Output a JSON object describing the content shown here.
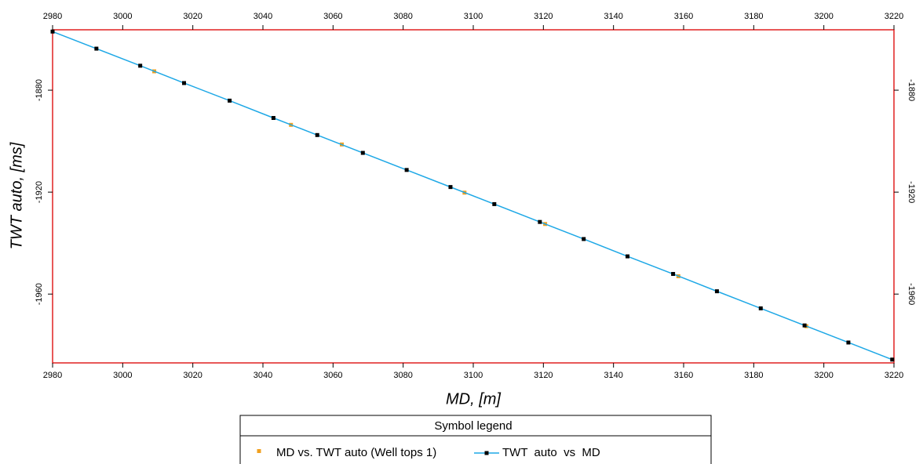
{
  "chart_data": {
    "type": "scatter",
    "xlabel": "MD, [m]",
    "ylabel": "TWT auto, [ms]",
    "legend_title": "Symbol legend",
    "xlim": [
      2980,
      3220
    ],
    "xticks": [
      2980,
      3000,
      3020,
      3040,
      3060,
      3080,
      3100,
      3120,
      3140,
      3160,
      3180,
      3200,
      3220
    ],
    "ylim": [
      -1987,
      -1856.3
    ],
    "yticks": [
      -1880,
      -1920,
      -1960
    ],
    "series": [
      {
        "name": "MD vs. TWT auto (Well tops 1)",
        "color": "#f0a020",
        "line": false,
        "x": [
          3009,
          3048,
          3062.5,
          3097.5,
          3120.5,
          3158.5,
          3195
        ],
        "values": [
          -1872.6,
          -1893.6,
          -1901.3,
          -1920.2,
          -1932.5,
          -1953.0,
          -1972.6
        ]
      },
      {
        "name": "TWT  auto  vs  MD",
        "color": "#000000",
        "line": true,
        "line_color": "#1ea8e6",
        "x": [
          2980,
          2992.5,
          3005,
          3017.5,
          3030.5,
          3043,
          3055.5,
          3068.5,
          3081,
          3093.5,
          3106,
          3119,
          3131.5,
          3144,
          3157,
          3169.5,
          3182,
          3194.5,
          3207,
          3219.5
        ],
        "values": [
          -1857.0,
          -1863.7,
          -1870.4,
          -1877.2,
          -1884.1,
          -1890.9,
          -1897.6,
          -1904.6,
          -1911.3,
          -1918.0,
          -1924.7,
          -1931.7,
          -1938.4,
          -1945.2,
          -1952.1,
          -1958.9,
          -1965.6,
          -1972.3,
          -1979.0,
          -1985.7
        ]
      }
    ]
  }
}
